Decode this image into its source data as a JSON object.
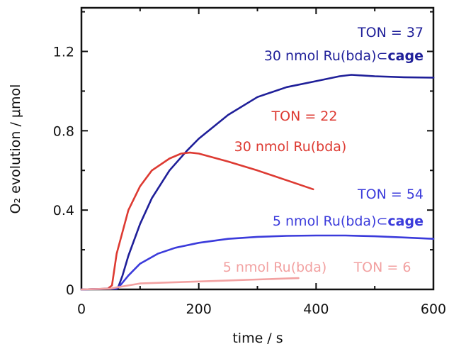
{
  "chart_data": {
    "type": "line",
    "xlabel": "time / s",
    "ylabel": "O₂ evolution / μmol",
    "xlim": [
      0,
      600
    ],
    "ylim": [
      0,
      1.42
    ],
    "x_ticks": [
      "0",
      "200",
      "400",
      "600"
    ],
    "y_ticks": [
      "0",
      "0.4",
      "0.8",
      "1.2"
    ],
    "grid": false,
    "series": [
      {
        "color": "#1f1f99",
        "points": [
          [
            0,
            0
          ],
          [
            50,
            0.004
          ],
          [
            62,
            0.006
          ],
          [
            70,
            0.07
          ],
          [
            80,
            0.17
          ],
          [
            100,
            0.33
          ],
          [
            120,
            0.46
          ],
          [
            150,
            0.6
          ],
          [
            180,
            0.7
          ],
          [
            200,
            0.76
          ],
          [
            250,
            0.88
          ],
          [
            300,
            0.97
          ],
          [
            350,
            1.02
          ],
          [
            400,
            1.05
          ],
          [
            440,
            1.075
          ],
          [
            460,
            1.082
          ],
          [
            500,
            1.075
          ],
          [
            550,
            1.07
          ],
          [
            600,
            1.068
          ]
        ]
      },
      {
        "color": "#dd3a32",
        "points": [
          [
            0,
            0
          ],
          [
            45,
            0.004
          ],
          [
            52,
            0.02
          ],
          [
            60,
            0.18
          ],
          [
            80,
            0.4
          ],
          [
            100,
            0.52
          ],
          [
            120,
            0.6
          ],
          [
            150,
            0.66
          ],
          [
            170,
            0.685
          ],
          [
            185,
            0.69
          ],
          [
            200,
            0.685
          ],
          [
            250,
            0.645
          ],
          [
            300,
            0.6
          ],
          [
            350,
            0.55
          ],
          [
            395,
            0.505
          ]
        ]
      },
      {
        "color": "#3b3bdb",
        "points": [
          [
            0,
            0
          ],
          [
            60,
            0.004
          ],
          [
            66,
            0.02
          ],
          [
            80,
            0.07
          ],
          [
            100,
            0.13
          ],
          [
            130,
            0.18
          ],
          [
            160,
            0.21
          ],
          [
            200,
            0.235
          ],
          [
            250,
            0.255
          ],
          [
            300,
            0.265
          ],
          [
            350,
            0.27
          ],
          [
            400,
            0.272
          ],
          [
            450,
            0.272
          ],
          [
            500,
            0.268
          ],
          [
            550,
            0.262
          ],
          [
            600,
            0.255
          ]
        ]
      },
      {
        "color": "#f2a1a1",
        "points": [
          [
            0,
            0
          ],
          [
            50,
            0.004
          ],
          [
            60,
            0.01
          ],
          [
            80,
            0.02
          ],
          [
            100,
            0.03
          ],
          [
            150,
            0.035
          ],
          [
            200,
            0.04
          ],
          [
            250,
            0.045
          ],
          [
            300,
            0.05
          ],
          [
            350,
            0.055
          ],
          [
            370,
            0.057
          ]
        ]
      }
    ],
    "annotations": [
      {
        "key": "a1",
        "text": "TON = 37",
        "color": "#1f1f99"
      },
      {
        "key": "a2",
        "text": "30 nmol Ru(bda)⊂",
        "bold": "cage",
        "color": "#1f1f99"
      },
      {
        "key": "a3",
        "text": "TON = 22",
        "color": "#dd3a32"
      },
      {
        "key": "a4",
        "text": "30 nmol Ru(bda)",
        "color": "#dd3a32"
      },
      {
        "key": "a5",
        "text": "TON = 54",
        "color": "#3b3bdb"
      },
      {
        "key": "a6",
        "text": "5 nmol Ru(bda)⊂",
        "bold": "cage",
        "color": "#3b3bdb"
      },
      {
        "key": "a7",
        "text": "5 nmol Ru(bda)",
        "color": "#f2a1a1"
      },
      {
        "key": "a8",
        "text": "TON = 6",
        "color": "#f2a1a1"
      }
    ]
  }
}
